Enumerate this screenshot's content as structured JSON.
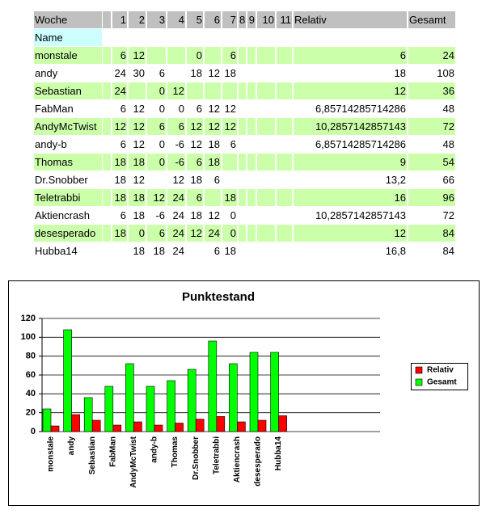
{
  "table": {
    "header": [
      "Woche",
      null,
      "1",
      "2",
      "3",
      "4",
      "5",
      "6",
      "7",
      "8",
      "9",
      "10",
      "11",
      "Relativ",
      "Gesamt"
    ],
    "subheader": "Name",
    "rows": [
      [
        "monstale",
        null,
        "6",
        "12",
        null,
        null,
        "0",
        null,
        "6",
        null,
        null,
        null,
        null,
        "6",
        "24"
      ],
      [
        "andy",
        null,
        "24",
        "30",
        "6",
        null,
        "18",
        "12",
        "18",
        null,
        null,
        null,
        null,
        "18",
        "108"
      ],
      [
        "Sebastian",
        null,
        "24",
        null,
        "0",
        "12",
        null,
        null,
        null,
        null,
        null,
        null,
        null,
        "12",
        "36"
      ],
      [
        "FabMan",
        null,
        "6",
        "12",
        "0",
        "0",
        "6",
        "12",
        "12",
        null,
        null,
        null,
        null,
        "6,85714285714286",
        "48"
      ],
      [
        "AndyMcTwist",
        null,
        "12",
        "12",
        "6",
        "6",
        "12",
        "12",
        "12",
        null,
        null,
        null,
        null,
        "10,2857142857143",
        "72"
      ],
      [
        "andy-b",
        null,
        "6",
        "12",
        "0",
        "-6",
        "12",
        "18",
        "6",
        null,
        null,
        null,
        null,
        "6,85714285714286",
        "48"
      ],
      [
        "Thomas",
        null,
        "18",
        "18",
        "0",
        "-6",
        "6",
        "18",
        null,
        null,
        null,
        null,
        null,
        "9",
        "54"
      ],
      [
        "Dr.Snobber",
        null,
        "18",
        "12",
        null,
        "12",
        "18",
        "6",
        null,
        null,
        null,
        null,
        null,
        "13,2",
        "66"
      ],
      [
        "Teletrabbi",
        null,
        "18",
        "18",
        "12",
        "24",
        "6",
        null,
        "18",
        null,
        null,
        null,
        null,
        "16",
        "96"
      ],
      [
        "Aktiencrash",
        null,
        "6",
        "18",
        "-6",
        "24",
        "18",
        "12",
        "0",
        null,
        null,
        null,
        null,
        "10,2857142857143",
        "72"
      ],
      [
        "desesperado",
        null,
        "18",
        "0",
        "6",
        "24",
        "12",
        "24",
        "0",
        null,
        null,
        null,
        null,
        "12",
        "84"
      ],
      [
        "Hubba14",
        null,
        null,
        "18",
        "18",
        "24",
        null,
        "6",
        "18",
        null,
        null,
        null,
        null,
        "16,8",
        "84"
      ]
    ]
  },
  "chart_data": {
    "type": "bar",
    "title": "Punktestand",
    "categories": [
      "monstale",
      "andy",
      "Sebastian",
      "FabMan",
      "AndyMcTwist",
      "andy-b",
      "Thomas",
      "Dr.Snobber",
      "Teletrabbi",
      "Aktiencrash",
      "desesperado",
      "Hubba14"
    ],
    "series": [
      {
        "name": "Relativ",
        "color": "#ff0000",
        "values": [
          6,
          18,
          12,
          6.85714285714286,
          10.2857142857143,
          6.85714285714286,
          9,
          13.2,
          16,
          10.2857142857143,
          12,
          16.8
        ]
      },
      {
        "name": "Gesamt",
        "color": "#00ff00",
        "values": [
          24,
          108,
          36,
          48,
          72,
          48,
          54,
          66,
          96,
          72,
          84,
          84
        ]
      }
    ],
    "ylim": [
      0,
      120
    ],
    "yticks": [
      0,
      20,
      40,
      60,
      80,
      100,
      120
    ],
    "grid": true,
    "legend": "right"
  }
}
